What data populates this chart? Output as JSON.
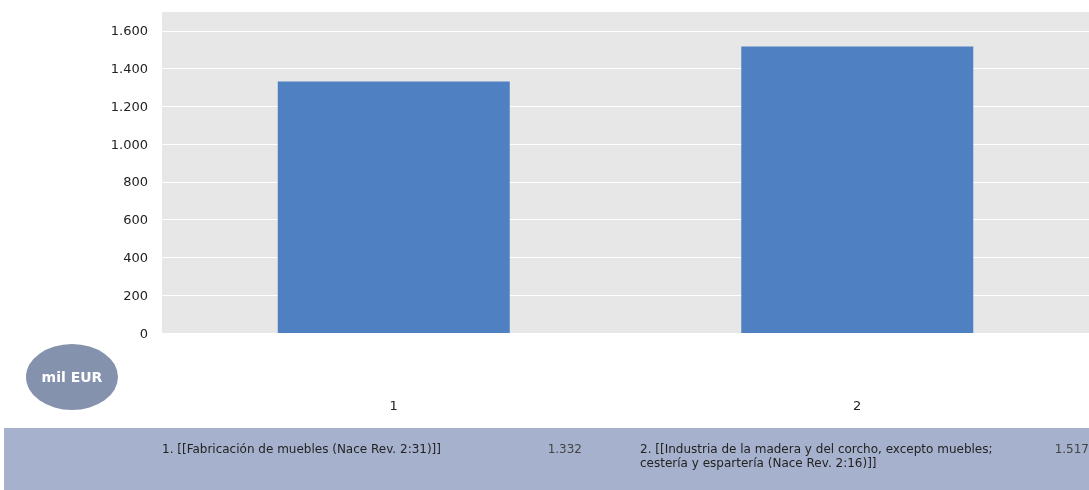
{
  "chart_data": {
    "type": "bar",
    "ylabel": "mil EUR",
    "categories": [
      "1",
      "2"
    ],
    "values": [
      1332,
      1517
    ],
    "value_labels": [
      "1.332",
      "1.517"
    ],
    "color": "#4f80c2",
    "ylim": [
      0,
      1700
    ],
    "yticks": [
      0,
      {
        "value": 200,
        "label": "200"
      },
      {
        "value": 400,
        "label": "400"
      },
      {
        "value": 600,
        "label": "600"
      },
      {
        "value": 800,
        "label": "800"
      },
      {
        "value": 1000,
        "label": "1.000"
      },
      {
        "value": 1200,
        "label": "1.200"
      },
      {
        "value": 1400,
        "label": "1.400"
      },
      {
        "value": 1600,
        "label": "1.600"
      }
    ],
    "grid": "y",
    "annotations": [
      "1. [[Fabricación de muebles (Nace Rev. 2:31)]]",
      "2. [[Industria de la madera y del corcho, excepto muebles; cestería y espartería (Nace Rev. 2:16)]]"
    ]
  }
}
